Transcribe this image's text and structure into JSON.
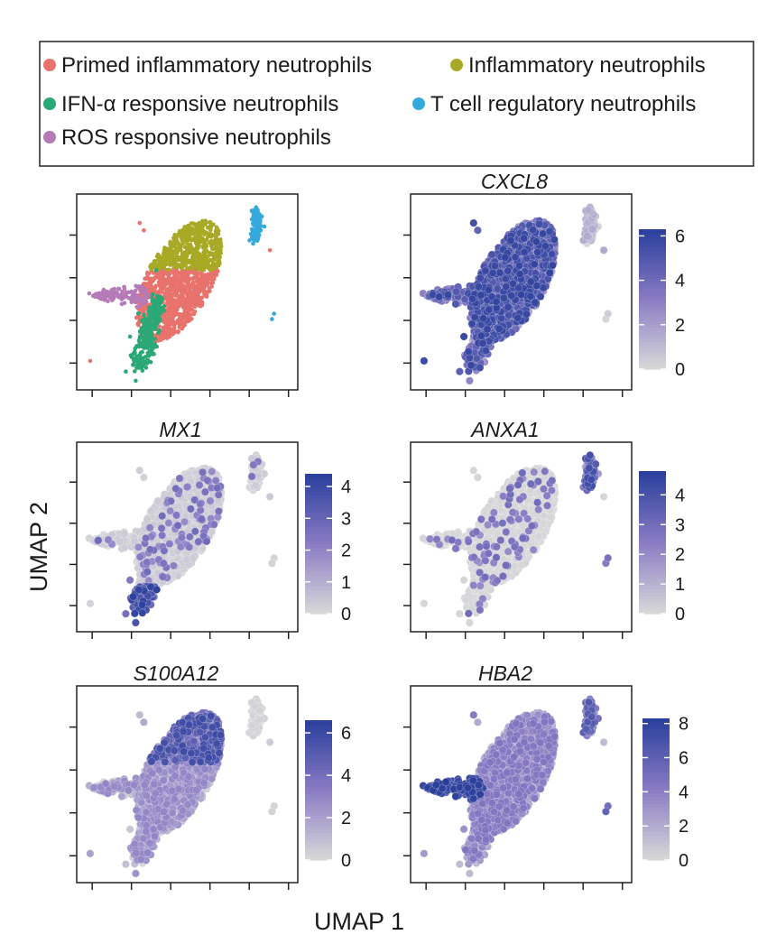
{
  "legend": {
    "items": [
      {
        "label": "Primed inflammatory neutrophils",
        "color": "#e8736c"
      },
      {
        "label": "Inflammatory neutrophils",
        "color": "#a8a924"
      },
      {
        "label": "IFN-α responsive neutrophils",
        "color": "#2aa876"
      },
      {
        "label": "T cell regulatory neutrophils",
        "color": "#35a9dc"
      },
      {
        "label": "ROS responsive neutrophils",
        "color": "#b57ab8"
      }
    ]
  },
  "xlabel": "UMAP 1",
  "ylabel": "UMAP 2",
  "colors": {
    "expr_low": "#d9d9d9",
    "expr_mid": "#8a7cc4",
    "expr_high": "#2a3f9c"
  },
  "chart_data": [
    {
      "type": "scatter",
      "title": "",
      "color_by": "cluster",
      "clusters": [
        "Primed inflammatory neutrophils",
        "Inflammatory neutrophils",
        "IFN-α responsive neutrophils",
        "T cell regulatory neutrophils",
        "ROS responsive neutrophils"
      ]
    },
    {
      "type": "scatter",
      "title": "CXCL8",
      "color_by": "expression",
      "colorbar_ticks": [
        "0",
        "2",
        "4",
        "6"
      ],
      "colorbar_max": 6.3,
      "pattern": "high"
    },
    {
      "type": "scatter",
      "title": "MX1",
      "color_by": "expression",
      "colorbar_ticks": [
        "0",
        "1",
        "2",
        "3",
        "4"
      ],
      "colorbar_max": 4.4,
      "pattern": "ifn"
    },
    {
      "type": "scatter",
      "title": "ANXA1",
      "color_by": "expression",
      "colorbar_ticks": [
        "0",
        "1",
        "2",
        "3",
        "4"
      ],
      "colorbar_max": 4.8,
      "pattern": "tcell"
    },
    {
      "type": "scatter",
      "title": "S100A12",
      "color_by": "expression",
      "colorbar_ticks": [
        "0",
        "2",
        "4",
        "6"
      ],
      "colorbar_max": 6.6,
      "pattern": "inflam"
    },
    {
      "type": "scatter",
      "title": "HBA2",
      "color_by": "expression",
      "colorbar_ticks": [
        "0",
        "2",
        "4",
        "6",
        "8"
      ],
      "colorbar_max": 8.3,
      "pattern": "ros"
    }
  ]
}
